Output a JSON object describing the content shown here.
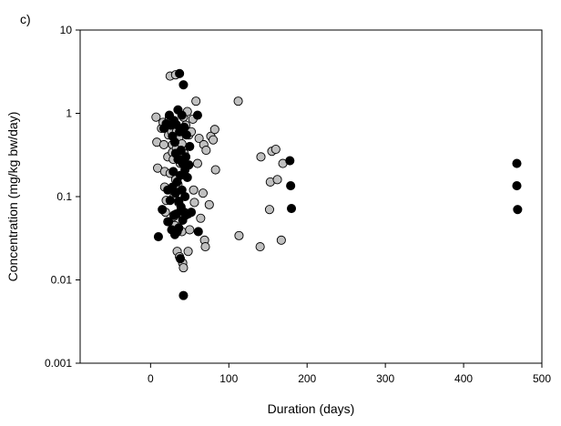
{
  "chart_data": {
    "type": "scatter",
    "panel_label": "c)",
    "xlabel": "Duration (days)",
    "ylabel": "Concentration (mg/kg bw/day)",
    "xlim": [
      -90,
      500
    ],
    "ylim": [
      0.001,
      10
    ],
    "yscale": "log",
    "xticks": [
      0,
      100,
      200,
      300,
      400,
      500
    ],
    "xtick_labels": [
      "0",
      "100",
      "200",
      "300",
      "400",
      "500"
    ],
    "yticks": [
      0.001,
      0.01,
      0.1,
      1,
      10
    ],
    "ytick_labels": [
      "0.001",
      "0.01",
      "0.1",
      "1",
      "10"
    ],
    "grid": false,
    "legend": "none",
    "series": [
      {
        "color": "#c0c0c0",
        "points": [
          [
            7,
            0.9
          ],
          [
            8,
            0.45
          ],
          [
            9,
            0.22
          ],
          [
            14,
            0.66
          ],
          [
            16,
            0.78
          ],
          [
            17,
            0.42
          ],
          [
            18,
            0.2
          ],
          [
            18,
            0.13
          ],
          [
            19,
            0.065
          ],
          [
            20,
            0.09
          ],
          [
            22,
            0.05
          ],
          [
            22,
            0.3
          ],
          [
            23,
            0.55
          ],
          [
            24,
            0.88
          ],
          [
            25,
            0.19
          ],
          [
            25,
            2.8
          ],
          [
            26,
            0.75
          ],
          [
            27,
            0.6
          ],
          [
            28,
            0.42
          ],
          [
            28,
            0.34
          ],
          [
            29,
            0.28
          ],
          [
            30,
            0.13
          ],
          [
            30,
            0.1
          ],
          [
            30,
            0.058
          ],
          [
            31,
            0.045
          ],
          [
            32,
            2.9
          ],
          [
            32,
            0.16
          ],
          [
            33,
            0.6
          ],
          [
            33,
            0.38
          ],
          [
            34,
            0.022
          ],
          [
            35,
            0.14
          ],
          [
            36,
            0.085
          ],
          [
            36,
            0.5
          ],
          [
            37,
            0.019
          ],
          [
            38,
            0.25
          ],
          [
            39,
            0.64
          ],
          [
            39,
            0.07
          ],
          [
            40,
            0.038
          ],
          [
            40,
            0.43
          ],
          [
            41,
            0.016
          ],
          [
            42,
            0.014
          ],
          [
            42,
            0.9
          ],
          [
            43,
            0.33
          ],
          [
            45,
            0.72
          ],
          [
            47,
            1.05
          ],
          [
            48,
            0.022
          ],
          [
            49,
            0.55
          ],
          [
            50,
            0.04
          ],
          [
            52,
            0.6
          ],
          [
            54,
            0.85
          ],
          [
            55,
            0.12
          ],
          [
            56,
            0.085
          ],
          [
            58,
            1.4
          ],
          [
            60,
            0.25
          ],
          [
            62,
            0.5
          ],
          [
            64,
            0.055
          ],
          [
            67,
            0.11
          ],
          [
            68,
            0.42
          ],
          [
            69,
            0.03
          ],
          [
            70,
            0.025
          ],
          [
            71,
            0.36
          ],
          [
            75,
            0.08
          ],
          [
            77,
            0.53
          ],
          [
            80,
            0.48
          ],
          [
            82,
            0.64
          ],
          [
            83,
            0.21
          ],
          [
            112,
            1.4
          ],
          [
            113,
            0.034
          ],
          [
            140,
            0.025
          ],
          [
            141,
            0.3
          ],
          [
            152,
            0.07
          ],
          [
            153,
            0.15
          ],
          [
            155,
            0.35
          ],
          [
            160,
            0.37
          ],
          [
            162,
            0.16
          ],
          [
            167,
            0.03
          ],
          [
            169,
            0.25
          ]
        ]
      },
      {
        "color": "#000000",
        "points": [
          [
            10,
            0.033
          ],
          [
            15,
            0.07
          ],
          [
            17,
            0.66
          ],
          [
            20,
            0.75
          ],
          [
            22,
            0.12
          ],
          [
            23,
            0.05
          ],
          [
            24,
            0.95
          ],
          [
            25,
            0.09
          ],
          [
            26,
            0.72
          ],
          [
            27,
            0.04
          ],
          [
            28,
            0.13
          ],
          [
            28,
            0.53
          ],
          [
            29,
            0.2
          ],
          [
            30,
            0.06
          ],
          [
            30,
            0.82
          ],
          [
            31,
            0.45
          ],
          [
            31,
            0.035
          ],
          [
            32,
            0.11
          ],
          [
            32,
            0.33
          ],
          [
            33,
            0.062
          ],
          [
            33,
            0.73
          ],
          [
            34,
            0.038
          ],
          [
            34,
            0.15
          ],
          [
            35,
            1.1
          ],
          [
            35,
            0.28
          ],
          [
            36,
            0.088
          ],
          [
            36,
            0.042
          ],
          [
            37,
            3.0
          ],
          [
            37,
            0.6
          ],
          [
            38,
            0.018
          ],
          [
            38,
            0.18
          ],
          [
            39,
            0.075
          ],
          [
            39,
            0.36
          ],
          [
            40,
            0.95
          ],
          [
            40,
            0.12
          ],
          [
            41,
            0.052
          ],
          [
            41,
            0.25
          ],
          [
            42,
            0.0065
          ],
          [
            42,
            2.2
          ],
          [
            43,
            0.065
          ],
          [
            43,
            0.68
          ],
          [
            44,
            0.21
          ],
          [
            44,
            0.1
          ],
          [
            45,
            0.3
          ],
          [
            45,
            0.06
          ],
          [
            46,
            0.55
          ],
          [
            47,
            0.17
          ],
          [
            48,
            0.062
          ],
          [
            49,
            0.24
          ],
          [
            50,
            0.4
          ],
          [
            52,
            0.065
          ],
          [
            60,
            0.95
          ],
          [
            61,
            0.038
          ],
          [
            178,
            0.27
          ],
          [
            179,
            0.135
          ],
          [
            180,
            0.072
          ],
          [
            468,
            0.25
          ],
          [
            468,
            0.135
          ],
          [
            469,
            0.07
          ]
        ]
      }
    ]
  }
}
